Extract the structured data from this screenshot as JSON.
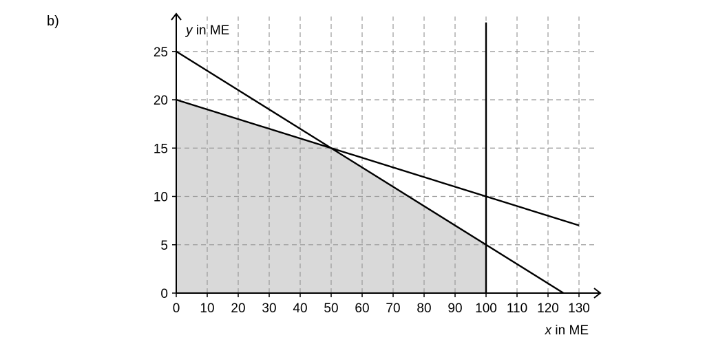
{
  "part_label": "b)",
  "chart_data": {
    "type": "line",
    "x_label_var": "x",
    "x_label_unit": " in ME",
    "y_label_var": "y",
    "y_label_unit": " in ME",
    "xlim": [
      0,
      130
    ],
    "ylim": [
      0,
      25
    ],
    "x_ticks": [
      0,
      10,
      20,
      30,
      40,
      50,
      60,
      70,
      80,
      90,
      100,
      110,
      120,
      130
    ],
    "y_ticks": [
      0,
      5,
      10,
      15,
      20,
      25
    ],
    "grid": true,
    "series": [
      {
        "x": [
          0,
          125
        ],
        "y": [
          25,
          0
        ]
      },
      {
        "x": [
          0,
          130
        ],
        "y": [
          20,
          7
        ]
      },
      {
        "x": [
          100,
          100
        ],
        "y": [
          0,
          28
        ]
      }
    ],
    "feasible_region": {
      "x": [
        0,
        0,
        50,
        100,
        100
      ],
      "y": [
        0,
        20,
        15,
        5,
        0
      ]
    },
    "fill_color": "#d9d9d9"
  }
}
